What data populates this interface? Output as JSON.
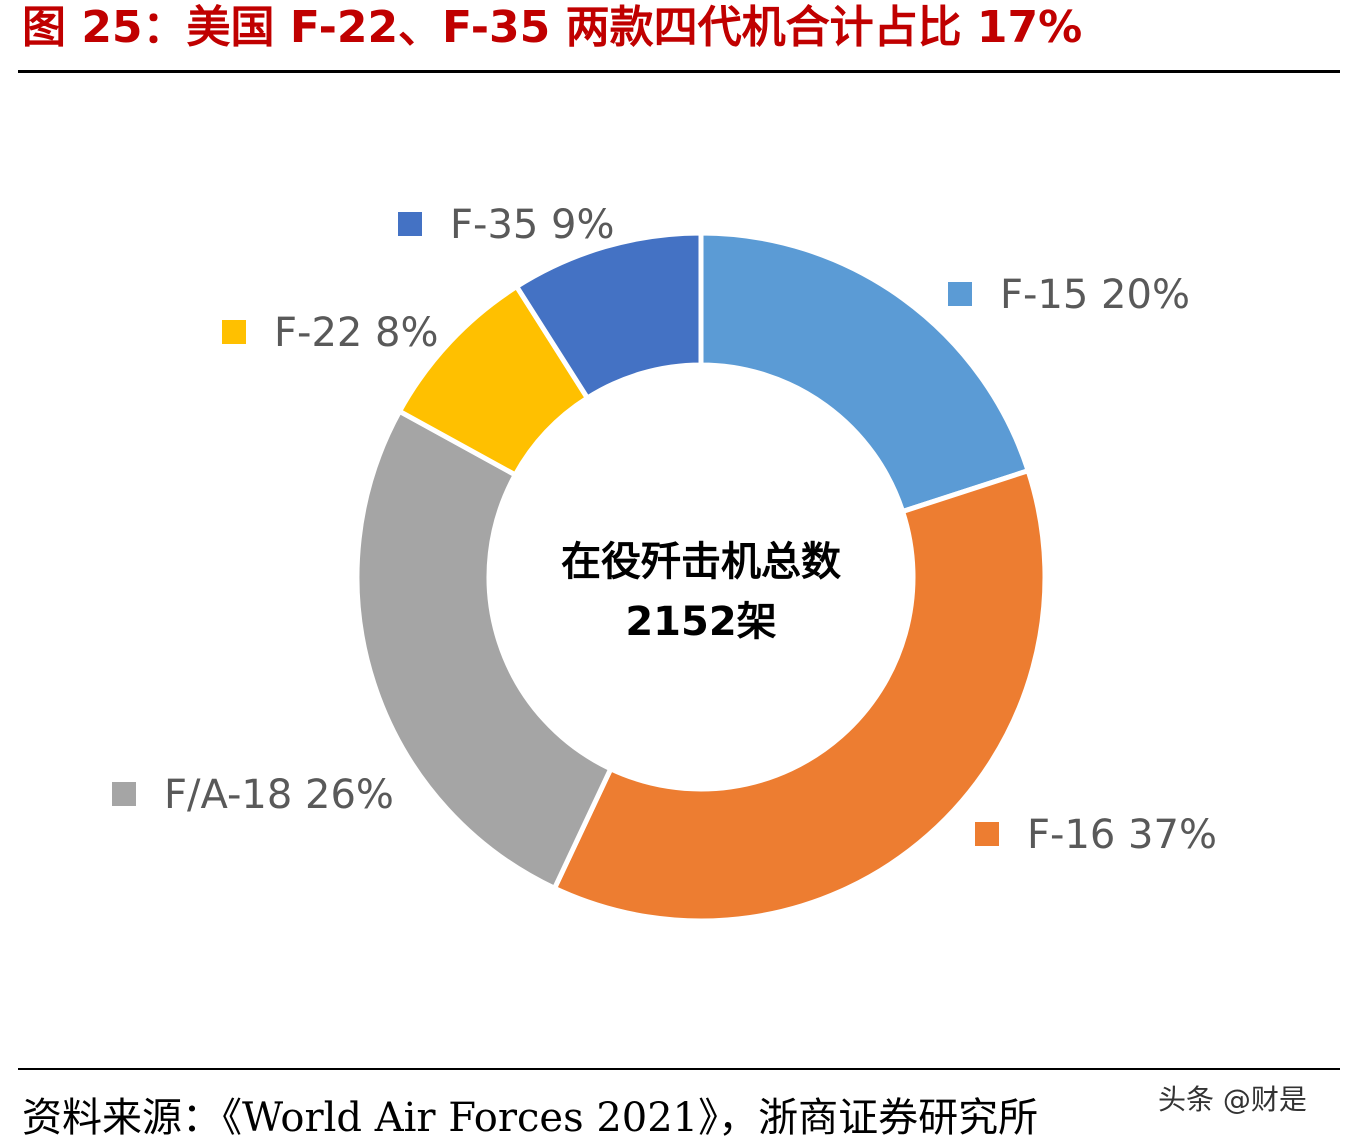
{
  "figure": {
    "title": "图 25：美国 F-22、F-35 两款四代机合计占比 17%",
    "source": "资料来源：《World Air Forces 2021》，浙商证券研究所",
    "watermark": "头条 @财是"
  },
  "chart_data": {
    "type": "pie",
    "donut": true,
    "center_label": [
      "在役歼击机总数",
      "2152架"
    ],
    "slices": [
      {
        "name": "F-15",
        "value": 20,
        "label": "F-15 20%",
        "color": "#5b9bd5"
      },
      {
        "name": "F-16",
        "value": 37,
        "label": "F-16 37%",
        "color": "#ed7d31"
      },
      {
        "name": "F/A-18",
        "value": 26,
        "label": "F/A-18 26%",
        "color": "#a5a5a5"
      },
      {
        "name": "F-22",
        "value": 8,
        "label": "F-22 8%",
        "color": "#ffc000"
      },
      {
        "name": "F-35",
        "value": 9,
        "label": "F-35 9%",
        "color": "#4472c4"
      }
    ]
  }
}
